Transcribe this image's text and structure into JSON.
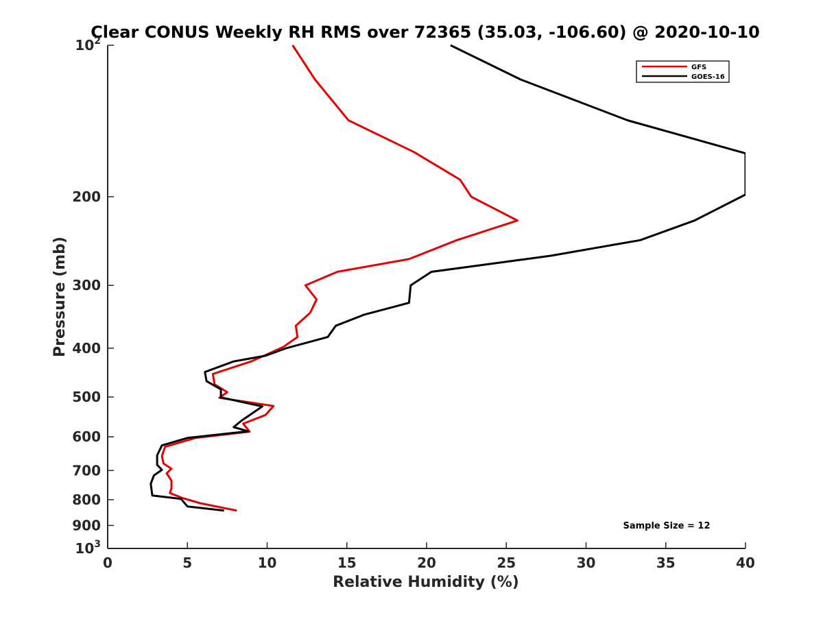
{
  "chart_data": {
    "type": "line",
    "title": "Clear CONUS Weekly RH RMS over 72365 (35.03, -106.60) @ 2020-10-10",
    "xlabel": "Relative Humidity (%)",
    "ylabel": "Pressure (mb)",
    "xlim": [
      0,
      40
    ],
    "ylim": [
      100,
      1000
    ],
    "yscale": "log",
    "y_reversed": true,
    "grid": false,
    "legend_position": "top-right",
    "x_ticks": [
      0,
      5,
      10,
      15,
      20,
      25,
      30,
      35,
      40
    ],
    "y_ticks": [
      {
        "value": 100,
        "base": "10",
        "exp": "2"
      },
      {
        "value": 200,
        "label": "200"
      },
      {
        "value": 300,
        "label": "300"
      },
      {
        "value": 400,
        "label": "400"
      },
      {
        "value": 500,
        "label": "500"
      },
      {
        "value": 600,
        "label": "600"
      },
      {
        "value": 700,
        "label": "700"
      },
      {
        "value": 800,
        "label": "800"
      },
      {
        "value": 900,
        "label": "900"
      },
      {
        "value": 1000,
        "base": "10",
        "exp": "3"
      }
    ],
    "annotation": "Sample Size = 12",
    "series": [
      {
        "name": "GFS",
        "color": "#e60000",
        "points": [
          [
            11.6,
            100
          ],
          [
            13.0,
            117
          ],
          [
            15.1,
            141
          ],
          [
            19.2,
            163
          ],
          [
            22.1,
            185
          ],
          [
            22.8,
            200
          ],
          [
            25.7,
            223
          ],
          [
            21.9,
            244
          ],
          [
            18.9,
            266
          ],
          [
            14.4,
            282
          ],
          [
            12.4,
            300
          ],
          [
            13.1,
            320
          ],
          [
            12.7,
            340
          ],
          [
            11.8,
            361
          ],
          [
            11.9,
            380
          ],
          [
            11.0,
            398
          ],
          [
            9.0,
            425
          ],
          [
            6.6,
            450
          ],
          [
            6.7,
            472
          ],
          [
            7.5,
            489
          ],
          [
            7.0,
            502
          ],
          [
            10.4,
            521
          ],
          [
            9.9,
            543
          ],
          [
            8.5,
            565
          ],
          [
            8.9,
            586
          ],
          [
            5.5,
            603
          ],
          [
            3.6,
            628
          ],
          [
            3.4,
            655
          ],
          [
            3.5,
            678
          ],
          [
            4.0,
            694
          ],
          [
            3.7,
            709
          ],
          [
            4.0,
            733
          ],
          [
            4.0,
            760
          ],
          [
            3.9,
            776
          ],
          [
            4.7,
            794
          ],
          [
            5.8,
            813
          ],
          [
            8.1,
            841
          ]
        ]
      },
      {
        "name": "GOES-16",
        "color": "#000000",
        "points": [
          [
            21.5,
            100
          ],
          [
            25.9,
            117
          ],
          [
            32.6,
            141
          ],
          [
            40.0,
            164
          ],
          [
            40.0,
            198
          ],
          [
            36.8,
            223
          ],
          [
            33.4,
            244
          ],
          [
            27.8,
            262
          ],
          [
            20.3,
            282
          ],
          [
            19.0,
            300
          ],
          [
            18.9,
            325
          ],
          [
            16.1,
            343
          ],
          [
            14.3,
            361
          ],
          [
            13.8,
            380
          ],
          [
            11.2,
            400
          ],
          [
            9.9,
            414
          ],
          [
            7.9,
            425
          ],
          [
            6.1,
            446
          ],
          [
            6.2,
            465
          ],
          [
            7.1,
            483
          ],
          [
            7.1,
            501
          ],
          [
            9.7,
            522
          ],
          [
            8.4,
            557
          ],
          [
            7.9,
            574
          ],
          [
            8.8,
            585
          ],
          [
            5.0,
            603
          ],
          [
            3.4,
            624
          ],
          [
            3.1,
            653
          ],
          [
            3.1,
            682
          ],
          [
            3.4,
            698
          ],
          [
            2.9,
            716
          ],
          [
            2.7,
            744
          ],
          [
            2.8,
            785
          ],
          [
            4.6,
            797
          ],
          [
            5.0,
            825
          ],
          [
            7.3,
            841
          ]
        ]
      }
    ]
  }
}
